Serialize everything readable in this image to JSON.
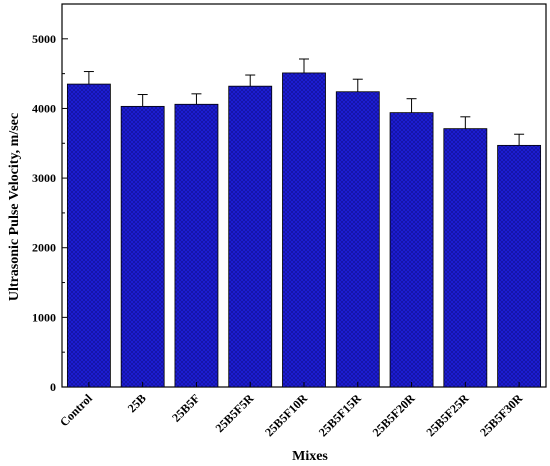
{
  "chart_data": {
    "type": "bar",
    "categories": [
      "Control",
      "25B",
      "25B5F",
      "25B5F5R",
      "25B5F10R",
      "25B5F15R",
      "25B5F20R",
      "25B5F25R",
      "25B5F30R"
    ],
    "values": [
      4350,
      4030,
      4060,
      4320,
      4510,
      4240,
      3940,
      3710,
      3470
    ],
    "error": [
      180,
      170,
      150,
      160,
      200,
      180,
      200,
      170,
      160
    ],
    "xlabel": "Mixes",
    "ylabel": "Ultrasonic Pulse Velocity, m/sec",
    "ylim": [
      0,
      5500
    ],
    "yticks": [
      0,
      1000,
      2000,
      3000,
      4000,
      5000
    ],
    "bar_color": "#1a1ad0",
    "grid": false,
    "legend": "none"
  }
}
